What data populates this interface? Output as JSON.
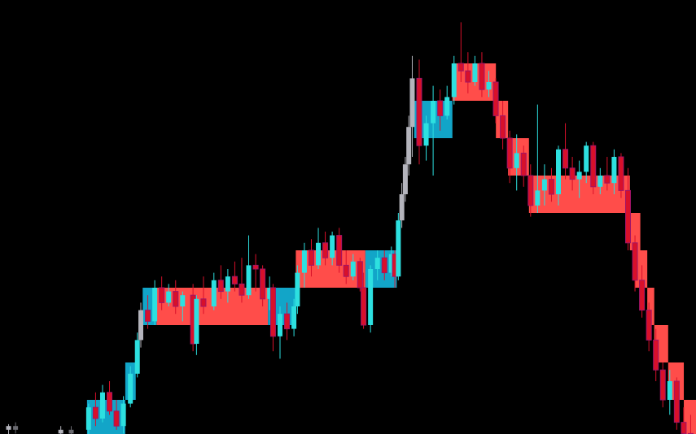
{
  "chart_data": {
    "type": "candlestick",
    "title": "",
    "xlabel": "",
    "ylabel": "",
    "grid": false,
    "legend": "none",
    "xlim": [
      0,
      200
    ],
    "ylim": [
      -0.1,
      11.6
    ],
    "colors": {
      "background": "#000000",
      "box_up": "#12a5c8",
      "box_down": "#ff4d4a",
      "candle_up_in_box": "#2de0e0",
      "candle_down_in_box": "#d8102a",
      "candle_up": "#b4b4bc",
      "candle_down": "#6a6a70",
      "candle_edge": "#a01468"
    },
    "boxes": [
      {
        "from": 25,
        "to": 36,
        "low": 0,
        "high": 1,
        "dir": "up"
      },
      {
        "from": 36,
        "to": 39,
        "low": 1,
        "high": 2,
        "dir": "up"
      },
      {
        "from": 41,
        "to": 45,
        "low": 3,
        "high": 4,
        "dir": "up"
      },
      {
        "from": 45,
        "to": 77,
        "low": 3,
        "high": 4,
        "dir": "down"
      },
      {
        "from": 77,
        "to": 85,
        "low": 3,
        "high": 4,
        "dir": "up"
      },
      {
        "from": 85,
        "to": 105,
        "low": 4,
        "high": 5,
        "dir": "down"
      },
      {
        "from": 105,
        "to": 114,
        "low": 4,
        "high": 5,
        "dir": "up"
      },
      {
        "from": 119,
        "to": 130,
        "low": 8,
        "high": 9,
        "dir": "up"
      },
      {
        "from": 130,
        "to": 142.5,
        "low": 9,
        "high": 10,
        "dir": "down"
      },
      {
        "from": 142.5,
        "to": 146,
        "low": 8,
        "high": 9,
        "dir": "down"
      },
      {
        "from": 146,
        "to": 152,
        "low": 7,
        "high": 8,
        "dir": "down"
      },
      {
        "from": 152,
        "to": 181,
        "low": 6,
        "high": 7,
        "dir": "down"
      },
      {
        "from": 181,
        "to": 184,
        "low": 5,
        "high": 6,
        "dir": "down"
      },
      {
        "from": 182.5,
        "to": 186,
        "low": 4,
        "high": 5,
        "dir": "down"
      },
      {
        "from": 186,
        "to": 188,
        "low": 3,
        "high": 4,
        "dir": "down"
      },
      {
        "from": 188,
        "to": 192,
        "low": 2,
        "high": 3,
        "dir": "down"
      },
      {
        "from": 192,
        "to": 196.5,
        "low": 1,
        "high": 2,
        "dir": "down"
      },
      {
        "from": 196.5,
        "to": 200,
        "low": 0,
        "high": 1,
        "dir": "down"
      }
    ],
    "candles": [
      [
        2,
        0.2,
        0.35,
        0.0,
        0.3
      ],
      [
        4,
        0.3,
        0.4,
        0.1,
        0.2
      ],
      [
        17,
        0.1,
        0.3,
        0,
        0.2
      ],
      [
        20,
        0.2,
        0.3,
        0,
        0.1
      ],
      [
        25,
        0.2,
        0.9,
        0,
        0.8
      ],
      [
        27,
        0.8,
        1.2,
        0.3,
        0.5
      ],
      [
        29,
        0.5,
        1.4,
        0.4,
        1.2
      ],
      [
        31,
        1.2,
        1.5,
        0.6,
        0.7
      ],
      [
        33,
        0.7,
        1.0,
        0.2,
        0.3
      ],
      [
        35,
        0.3,
        1.1,
        0.1,
        0.9
      ],
      [
        37,
        0.9,
        1.9,
        0.8,
        1.7
      ],
      [
        39,
        1.7,
        2.8,
        1.6,
        2.6
      ],
      [
        40,
        2.6,
        3.6,
        2.4,
        3.4
      ],
      [
        42,
        3.4,
        3.8,
        2.9,
        3.1
      ],
      [
        44,
        3.1,
        4.2,
        3.0,
        4.0
      ],
      [
        46,
        4.0,
        4.3,
        3.4,
        3.6
      ],
      [
        48,
        3.6,
        4.1,
        3.5,
        3.9
      ],
      [
        50,
        3.9,
        4.2,
        3.3,
        3.5
      ],
      [
        52,
        3.5,
        3.9,
        3.1,
        3.8
      ],
      [
        55,
        3.8,
        4.1,
        2.3,
        2.5
      ],
      [
        56,
        2.5,
        3.8,
        2.2,
        3.7
      ],
      [
        58,
        3.7,
        4.3,
        3.3,
        3.5
      ],
      [
        61,
        3.5,
        4.4,
        3.4,
        4.2
      ],
      [
        63,
        4.2,
        4.6,
        3.7,
        3.9
      ],
      [
        65,
        3.9,
        4.5,
        3.6,
        4.3
      ],
      [
        67,
        4.3,
        4.7,
        3.9,
        4.1
      ],
      [
        69,
        4.1,
        4.8,
        3.6,
        3.8
      ],
      [
        71,
        3.8,
        5.4,
        3.7,
        4.6
      ],
      [
        73,
        4.6,
        4.9,
        3.9,
        4.5
      ],
      [
        75,
        4.5,
        4.6,
        3.5,
        3.7
      ],
      [
        77,
        3.7,
        4.3,
        3.4,
        4.0
      ],
      [
        78,
        4.0,
        4.1,
        2.3,
        2.7
      ],
      [
        80,
        2.7,
        3.5,
        2.1,
        3.3
      ],
      [
        82,
        3.3,
        3.6,
        2.6,
        2.9
      ],
      [
        84,
        2.9,
        3.7,
        2.7,
        3.5
      ],
      [
        85,
        3.5,
        4.6,
        3.3,
        4.4
      ],
      [
        87,
        4.4,
        5.2,
        4.0,
        5.0
      ],
      [
        89,
        5.0,
        5.3,
        4.3,
        4.6
      ],
      [
        91,
        4.6,
        5.6,
        4.5,
        5.2
      ],
      [
        93,
        5.2,
        5.5,
        4.6,
        4.8
      ],
      [
        95,
        4.8,
        5.5,
        4.6,
        5.4
      ],
      [
        97,
        5.4,
        5.6,
        4.4,
        4.6
      ],
      [
        99,
        4.6,
        5.0,
        4.1,
        4.3
      ],
      [
        101,
        4.3,
        4.9,
        4.2,
        4.7
      ],
      [
        103,
        4.7,
        4.8,
        3.9,
        4.0
      ],
      [
        104,
        4.0,
        4.4,
        2.9,
        3.0
      ],
      [
        106,
        3.0,
        4.6,
        2.8,
        4.5
      ],
      [
        108,
        4.5,
        5.0,
        4.2,
        4.8
      ],
      [
        110,
        4.8,
        5.0,
        4.2,
        4.4
      ],
      [
        112,
        4.4,
        5.1,
        4.3,
        4.9
      ],
      [
        113,
        4.9,
        5.0,
        4.0,
        4.3
      ],
      [
        114,
        4.3,
        6.0,
        4.2,
        5.8
      ],
      [
        115,
        5.8,
        6.8,
        5.6,
        6.5
      ],
      [
        116,
        6.5,
        7.5,
        6.3,
        7.3
      ],
      [
        117,
        7.3,
        8.6,
        7.0,
        8.3
      ],
      [
        118,
        8.3,
        10.2,
        7.5,
        9.6
      ],
      [
        120,
        9.6,
        10.1,
        7.3,
        7.8
      ],
      [
        122,
        7.8,
        8.6,
        7.4,
        8.4
      ],
      [
        124,
        8.4,
        9.4,
        7.0,
        9.0
      ],
      [
        126,
        9.0,
        9.3,
        8.2,
        8.6
      ],
      [
        128,
        8.6,
        9.4,
        8.5,
        9.1
      ],
      [
        130,
        9.1,
        10.2,
        8.9,
        10.0
      ],
      [
        132,
        10.0,
        11.1,
        9.5,
        9.8
      ],
      [
        134,
        9.8,
        10.3,
        9.2,
        9.5
      ],
      [
        136,
        9.5,
        10.2,
        9.4,
        10.0
      ],
      [
        138,
        10.0,
        10.3,
        9.1,
        9.3
      ],
      [
        140,
        9.3,
        9.8,
        9.1,
        9.5
      ],
      [
        142,
        9.5,
        9.6,
        8.4,
        8.6
      ],
      [
        144,
        8.6,
        9.0,
        7.7,
        8.0
      ],
      [
        146,
        8.0,
        8.2,
        6.8,
        7.2
      ],
      [
        148,
        7.2,
        8.1,
        6.6,
        7.6
      ],
      [
        150,
        7.6,
        7.8,
        6.7,
        7.0
      ],
      [
        152,
        7.0,
        7.3,
        5.9,
        6.2
      ],
      [
        154,
        6.2,
        8.9,
        6.0,
        6.6
      ],
      [
        156,
        6.6,
        7.3,
        6.2,
        6.9
      ],
      [
        158,
        6.9,
        7.2,
        6.3,
        6.5
      ],
      [
        160,
        6.5,
        7.8,
        6.2,
        7.7
      ],
      [
        162,
        7.7,
        8.4,
        6.9,
        7.2
      ],
      [
        164,
        7.2,
        7.5,
        6.6,
        6.9
      ],
      [
        166,
        6.9,
        7.4,
        6.4,
        7.1
      ],
      [
        168,
        7.1,
        7.9,
        6.8,
        7.8
      ],
      [
        170,
        7.8,
        7.9,
        6.5,
        6.7
      ],
      [
        172,
        6.7,
        7.2,
        6.5,
        7.0
      ],
      [
        174,
        7.0,
        7.5,
        6.6,
        6.8
      ],
      [
        176,
        6.8,
        7.7,
        6.5,
        7.5
      ],
      [
        178,
        7.5,
        7.6,
        6.4,
        6.6
      ],
      [
        180,
        6.6,
        7.2,
        5.0,
        5.2
      ],
      [
        182,
        5.2,
        5.4,
        3.9,
        4.2
      ],
      [
        184,
        4.2,
        4.6,
        3.2,
        3.4
      ],
      [
        186,
        3.4,
        3.6,
        2.3,
        2.6
      ],
      [
        188,
        2.6,
        2.9,
        1.5,
        1.8
      ],
      [
        190,
        1.8,
        2.0,
        0.8,
        1.0
      ],
      [
        192,
        1.0,
        1.8,
        0.6,
        1.5
      ],
      [
        194,
        1.5,
        1.6,
        0.2,
        0.4
      ],
      [
        196,
        0.4,
        0.8,
        -0.1,
        0.1
      ],
      [
        198,
        0.1,
        0.6,
        -0.2,
        0.0
      ]
    ]
  }
}
